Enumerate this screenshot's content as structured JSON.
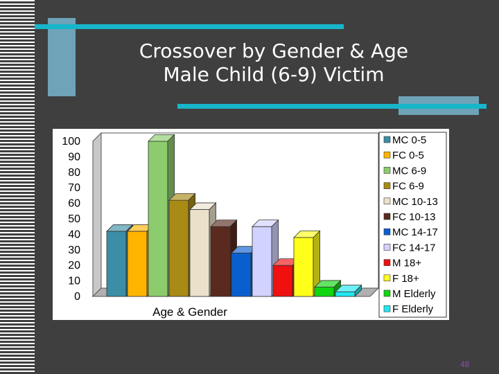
{
  "slide": {
    "title_line1": "Crossover by Gender & Age",
    "title_line2": "Male Child (6-9) Victim",
    "page_number": "48"
  },
  "chart_data": {
    "type": "bar",
    "title": "",
    "xlabel": "Age & Gender",
    "ylabel": "",
    "ylim": [
      0,
      100
    ],
    "y_ticks": [
      "0",
      "10",
      "20",
      "30",
      "40",
      "50",
      "60",
      "70",
      "80",
      "90",
      "100"
    ],
    "legend_position": "right",
    "grid": false,
    "three_d": true,
    "series": [
      {
        "name": "MC 0-5",
        "values": [
          42
        ],
        "color": "#3b8ea5"
      },
      {
        "name": "FC 0-5",
        "values": [
          42
        ],
        "color": "#ffb400"
      },
      {
        "name": "MC 6-9",
        "values": [
          100
        ],
        "color": "#8ccc6c"
      },
      {
        "name": "FC 6-9",
        "values": [
          62
        ],
        "color": "#a98a14"
      },
      {
        "name": "MC 10-13",
        "values": [
          56
        ],
        "color": "#ebe1ca"
      },
      {
        "name": "FC 10-13",
        "values": [
          45
        ],
        "color": "#5a2a1e"
      },
      {
        "name": "MC 14-17",
        "values": [
          28
        ],
        "color": "#0a5fcf"
      },
      {
        "name": "FC 14-17",
        "values": [
          45
        ],
        "color": "#d2d2ff"
      },
      {
        "name": "M 18+",
        "values": [
          20
        ],
        "color": "#f01010"
      },
      {
        "name": "F 18+",
        "values": [
          38
        ],
        "color": "#ffff1a"
      },
      {
        "name": "M Elderly",
        "values": [
          6
        ],
        "color": "#10d610"
      },
      {
        "name": "F Elderly",
        "values": [
          3
        ],
        "color": "#20e8f2"
      }
    ]
  }
}
